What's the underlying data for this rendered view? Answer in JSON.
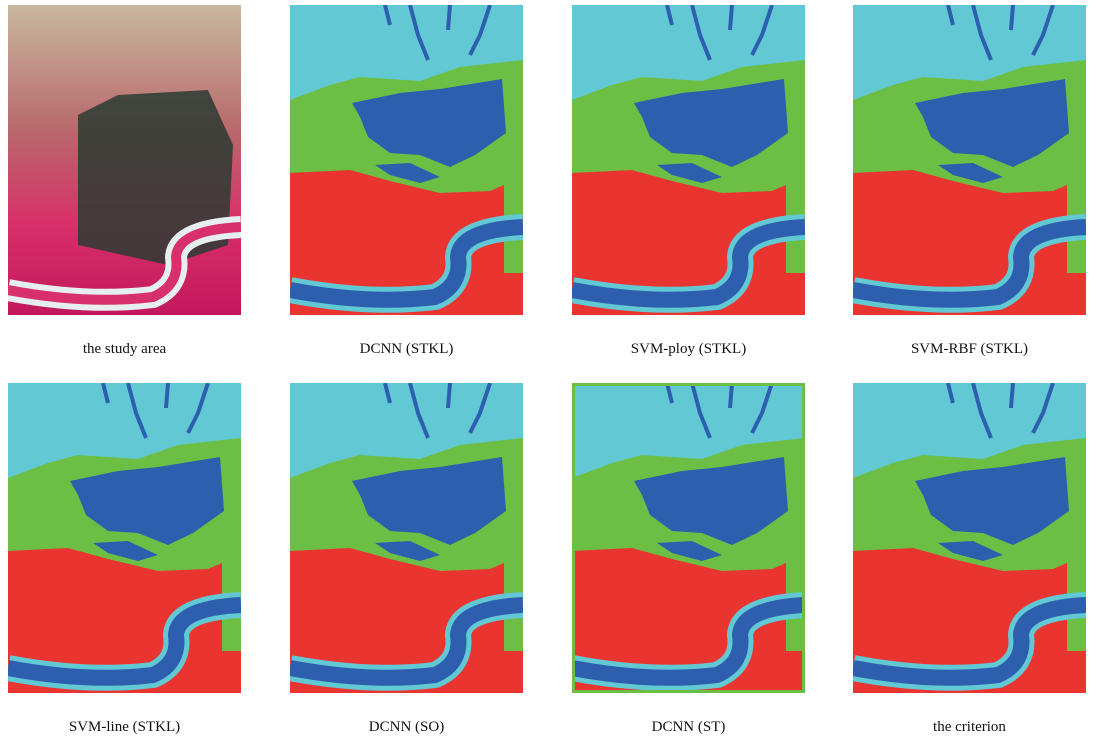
{
  "panels": [
    {
      "caption": "the study area"
    },
    {
      "caption": "DCNN (STKL)"
    },
    {
      "caption": "SVM-ploy (STKL)"
    },
    {
      "caption": "SVM-RBF (STKL)"
    },
    {
      "caption": "SVM-line (STKL)"
    },
    {
      "caption": "DCNN (SO)"
    },
    {
      "caption": "DCNN (ST)"
    },
    {
      "caption": "the criterion"
    }
  ]
}
